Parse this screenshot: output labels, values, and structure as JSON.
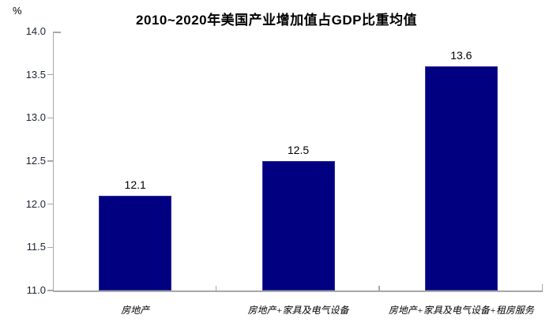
{
  "chart": {
    "title": "2010~2020年美国产业增加值占GDP比重均值",
    "unit_label": "%"
  },
  "chart_data": {
    "type": "bar",
    "title": "2010~2020年美国产业增加值占GDP比重均值",
    "categories": [
      "房地产",
      "房地产+家具及电气设备",
      "房地产+家具及电气设备+租房服务"
    ],
    "values": [
      12.1,
      12.5,
      13.6
    ],
    "data_labels": [
      "12.1",
      "12.5",
      "13.6"
    ],
    "xlabel": "",
    "ylabel": "%",
    "ylim": [
      11.0,
      14.0
    ],
    "ytick_step": 0.5,
    "yticks": [
      "14.0",
      "13.5",
      "13.0",
      "12.5",
      "12.0",
      "11.5",
      "11.0"
    ],
    "grid": false,
    "legend": "none",
    "bar_color": "#000080",
    "bar_border_color": "#30309d",
    "axis_color": "#a8a8a8",
    "label_color": "#000000"
  }
}
